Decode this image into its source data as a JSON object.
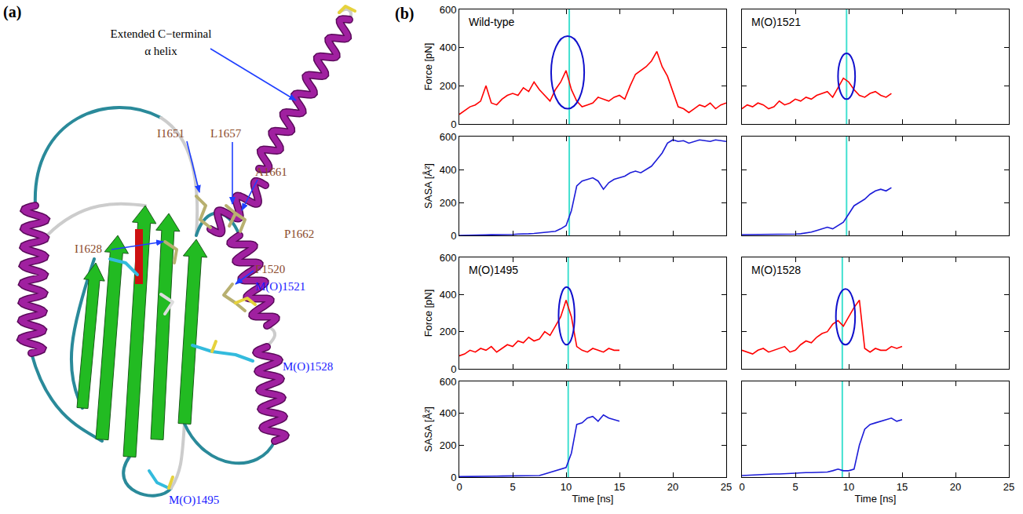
{
  "panel_labels": [
    "(a)",
    "(b)"
  ],
  "structure": {
    "labels": [
      {
        "text": "Extended C−terminal α helix",
        "color": "#000000"
      },
      {
        "text": "I1651",
        "color": "#8b4a2b"
      },
      {
        "text": "L1657",
        "color": "#8b4a2b"
      },
      {
        "text": "A1661",
        "color": "#8b4a2b"
      },
      {
        "text": "I1628",
        "color": "#8b4a2b"
      },
      {
        "text": "P1662",
        "color": "#8b4a2b"
      },
      {
        "text": "F1520",
        "color": "#8b4a2b"
      },
      {
        "text": "M(O)1521",
        "color": "#1a1aff"
      },
      {
        "text": "M(O)1528",
        "color": "#1a1aff"
      },
      {
        "text": "M(O)1495",
        "color": "#1a1aff"
      }
    ]
  },
  "chart_data": [
    {
      "type": "line",
      "title": "Wild-type",
      "ylabel": "Force [pN]",
      "color": "#ff0000",
      "x": [
        0,
        0.5,
        1,
        1.5,
        2,
        2.5,
        3,
        3.5,
        4,
        4.5,
        5,
        5.5,
        6,
        6.5,
        7,
        7.5,
        8,
        8.5,
        9,
        9.5,
        10,
        10.5,
        11,
        11.5,
        12,
        12.5,
        13,
        13.5,
        14,
        14.5,
        15,
        15.5,
        16,
        16.5,
        17,
        17.5,
        18,
        18.5,
        19,
        19.5,
        20,
        20.5,
        21,
        21.5,
        22,
        22.5,
        23,
        23.5,
        24,
        24.5,
        25
      ],
      "values": [
        50,
        70,
        90,
        100,
        120,
        200,
        110,
        100,
        130,
        150,
        160,
        150,
        190,
        170,
        220,
        180,
        150,
        120,
        180,
        220,
        280,
        180,
        120,
        90,
        100,
        110,
        140,
        130,
        120,
        140,
        150,
        130,
        200,
        260,
        280,
        300,
        330,
        380,
        300,
        250,
        170,
        90,
        80,
        60,
        80,
        100,
        90,
        110,
        80,
        100,
        110
      ],
      "vline": 10.3,
      "highlight": {
        "x": [
          8.6,
          11.7
        ],
        "y": [
          80,
          460
        ]
      },
      "xlim": [
        0,
        25
      ],
      "xticks": [
        0,
        5,
        10,
        15,
        20,
        25
      ],
      "ylim": [
        0,
        600
      ],
      "yticks": [
        0,
        200,
        400,
        600
      ],
      "grid": false,
      "tick_labels": "y"
    },
    {
      "type": "line",
      "ylabel": "SASA [Å²]",
      "color": "#1c1cd8",
      "x": [
        0,
        0.5,
        1,
        1.5,
        2,
        2.5,
        3,
        3.5,
        4,
        4.5,
        5,
        5.5,
        6,
        6.5,
        7,
        7.5,
        8,
        8.5,
        9,
        9.5,
        10,
        10.5,
        11,
        11.5,
        12,
        12.5,
        13,
        13.5,
        14,
        14.5,
        15,
        15.5,
        16,
        16.5,
        17,
        17.5,
        18,
        18.5,
        19,
        19.5,
        20,
        20.5,
        21,
        21.5,
        22,
        22.5,
        23,
        23.5,
        24,
        24.5,
        25
      ],
      "values": [
        0,
        0,
        2,
        2,
        3,
        3,
        4,
        4,
        5,
        5,
        6,
        8,
        8,
        10,
        12,
        15,
        18,
        20,
        25,
        40,
        60,
        150,
        300,
        330,
        340,
        350,
        330,
        280,
        320,
        340,
        350,
        360,
        380,
        390,
        380,
        400,
        420,
        460,
        500,
        560,
        580,
        570,
        575,
        560,
        570,
        580,
        575,
        570,
        580,
        575,
        570
      ],
      "vline": 10.3,
      "xlim": [
        0,
        25
      ],
      "xticks": [
        0,
        5,
        10,
        15,
        20,
        25
      ],
      "ylim": [
        0,
        600
      ],
      "yticks": [
        0,
        200,
        400,
        600
      ],
      "grid": false,
      "tick_labels": "y"
    },
    {
      "type": "line",
      "title": "M(O)1521",
      "color": "#ff0000",
      "x": [
        0,
        0.5,
        1,
        1.5,
        2,
        2.5,
        3,
        3.5,
        4,
        4.5,
        5,
        5.5,
        6,
        6.5,
        7,
        7.5,
        8,
        8.5,
        9,
        9.5,
        10,
        10.5,
        11,
        11.5,
        12,
        12.5,
        13,
        13.5,
        14
      ],
      "values": [
        80,
        100,
        90,
        110,
        100,
        80,
        90,
        120,
        100,
        110,
        130,
        120,
        140,
        130,
        150,
        160,
        170,
        140,
        190,
        240,
        220,
        180,
        150,
        140,
        160,
        170,
        150,
        140,
        160
      ],
      "vline": 9.8,
      "highlight": {
        "x": [
          9.0,
          10.6
        ],
        "y": [
          130,
          370
        ]
      },
      "xlim": [
        0,
        25
      ],
      "xticks": [
        0,
        5,
        10,
        15,
        20,
        25
      ],
      "ylim": [
        0,
        600
      ],
      "yticks": [
        0,
        200,
        400,
        600
      ],
      "grid": false,
      "tick_labels": false
    },
    {
      "type": "line",
      "color": "#1c1cd8",
      "x": [
        0,
        0.5,
        1,
        1.5,
        2,
        2.5,
        3,
        3.5,
        4,
        4.5,
        5,
        5.5,
        6,
        6.5,
        7,
        7.5,
        8,
        8.5,
        9,
        9.5,
        10,
        10.5,
        11,
        11.5,
        12,
        12.5,
        13,
        13.5,
        14
      ],
      "values": [
        5,
        5,
        5,
        6,
        6,
        6,
        7,
        7,
        8,
        8,
        8,
        10,
        15,
        20,
        30,
        40,
        50,
        40,
        60,
        80,
        130,
        180,
        200,
        220,
        250,
        270,
        280,
        270,
        290
      ],
      "vline": 9.8,
      "xlim": [
        0,
        25
      ],
      "xticks": [
        0,
        5,
        10,
        15,
        20,
        25
      ],
      "ylim": [
        0,
        600
      ],
      "yticks": [
        0,
        200,
        400,
        600
      ],
      "grid": false,
      "tick_labels": false
    },
    {
      "type": "line",
      "title": "M(O)1495",
      "ylabel": "Force [pN]",
      "color": "#ff0000",
      "x": [
        0,
        0.5,
        1,
        1.5,
        2,
        2.5,
        3,
        3.5,
        4,
        4.5,
        5,
        5.5,
        6,
        6.5,
        7,
        7.5,
        8,
        8.5,
        9,
        9.5,
        10,
        10.5,
        11,
        11.5,
        12,
        12.5,
        13,
        13.5,
        14,
        14.5,
        15
      ],
      "values": [
        70,
        80,
        100,
        90,
        110,
        100,
        120,
        90,
        110,
        130,
        120,
        150,
        140,
        170,
        150,
        160,
        200,
        180,
        230,
        280,
        370,
        280,
        120,
        100,
        90,
        110,
        100,
        90,
        110,
        100,
        100
      ],
      "vline": 10.2,
      "highlight": {
        "x": [
          9.3,
          10.8
        ],
        "y": [
          130,
          440
        ]
      },
      "xlim": [
        0,
        25
      ],
      "xticks": [
        0,
        5,
        10,
        15,
        20,
        25
      ],
      "ylim": [
        0,
        600
      ],
      "yticks": [
        0,
        200,
        400,
        600
      ],
      "grid": false,
      "tick_labels": "y"
    },
    {
      "type": "line",
      "ylabel": "SASA [Å²]",
      "xlabel": "Time [ns]",
      "color": "#1c1cd8",
      "x": [
        0,
        0.5,
        1,
        1.5,
        2,
        2.5,
        3,
        3.5,
        4,
        4.5,
        5,
        5.5,
        6,
        6.5,
        7,
        7.5,
        8,
        8.5,
        9,
        9.5,
        10,
        10.5,
        11,
        11.5,
        12,
        12.5,
        13,
        13.5,
        14,
        14.5,
        15
      ],
      "values": [
        3,
        3,
        4,
        4,
        5,
        5,
        6,
        6,
        7,
        7,
        8,
        8,
        9,
        9,
        10,
        10,
        20,
        30,
        40,
        50,
        60,
        150,
        330,
        340,
        370,
        380,
        350,
        390,
        370,
        360,
        350
      ],
      "vline": 10.2,
      "xlim": [
        0,
        25
      ],
      "xticks": [
        0,
        5,
        10,
        15,
        20,
        25
      ],
      "ylim": [
        0,
        600
      ],
      "yticks": [
        0,
        200,
        400,
        600
      ],
      "grid": false,
      "tick_labels": true
    },
    {
      "type": "line",
      "title": "M(O)1528",
      "color": "#ff0000",
      "x": [
        0,
        0.5,
        1,
        1.5,
        2,
        2.5,
        3,
        3.5,
        4,
        4.5,
        5,
        5.5,
        6,
        6.5,
        7,
        7.5,
        8,
        8.5,
        9,
        9.5,
        10,
        10.5,
        11,
        11.5,
        12,
        12.5,
        13,
        13.5,
        14,
        14.5,
        15
      ],
      "values": [
        100,
        90,
        80,
        100,
        110,
        90,
        100,
        110,
        120,
        90,
        100,
        130,
        150,
        140,
        170,
        190,
        200,
        240,
        260,
        230,
        280,
        330,
        370,
        110,
        90,
        110,
        100,
        100,
        120,
        110,
        120
      ],
      "vline": 9.4,
      "highlight": {
        "x": [
          8.8,
          10.6
        ],
        "y": [
          130,
          430
        ]
      },
      "xlim": [
        0,
        25
      ],
      "xticks": [
        0,
        5,
        10,
        15,
        20,
        25
      ],
      "ylim": [
        0,
        600
      ],
      "yticks": [
        0,
        200,
        400,
        600
      ],
      "grid": false,
      "tick_labels": false
    },
    {
      "type": "line",
      "xlabel": "Time [ns]",
      "color": "#1c1cd8",
      "x": [
        0,
        0.5,
        1,
        1.5,
        2,
        2.5,
        3,
        3.5,
        4,
        4.5,
        5,
        5.5,
        6,
        6.5,
        7,
        7.5,
        8,
        8.5,
        9,
        9.5,
        10,
        10.5,
        11,
        11.5,
        12,
        12.5,
        13,
        13.5,
        14,
        14.5,
        15
      ],
      "values": [
        10,
        12,
        15,
        15,
        18,
        18,
        20,
        20,
        22,
        22,
        25,
        25,
        28,
        28,
        30,
        30,
        32,
        40,
        50,
        40,
        40,
        50,
        200,
        300,
        330,
        340,
        350,
        360,
        370,
        350,
        360
      ],
      "vline": 9.4,
      "xlim": [
        0,
        25
      ],
      "xticks": [
        0,
        5,
        10,
        15,
        20,
        25
      ],
      "ylim": [
        0,
        600
      ],
      "yticks": [
        0,
        200,
        400,
        600
      ],
      "grid": false,
      "tick_labels": "x"
    }
  ]
}
